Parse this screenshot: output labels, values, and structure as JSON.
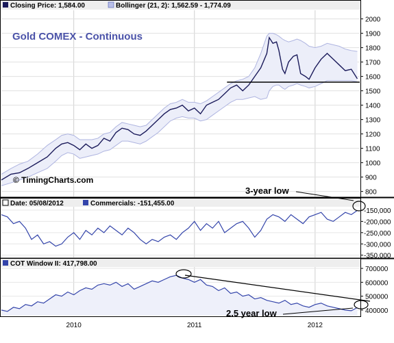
{
  "chart_data": [
    {
      "type": "line",
      "title": "Gold COMEX - Continuous",
      "legend": [
        {
          "label": "Closing Price: 1,584.00",
          "color": "#1a1a5a"
        },
        {
          "label": "Bollinger (21, 2): 1,562.59 - 1,774.09",
          "color": "#b9bfe8"
        }
      ],
      "watermark": "© TimingCharts.com",
      "x_labels": [
        "2010",
        "2011",
        "2012"
      ],
      "y_ticks": [
        800,
        900,
        1000,
        1100,
        1200,
        1300,
        1400,
        1500,
        1600,
        1700,
        1800,
        1900,
        2000
      ],
      "ylim": [
        765,
        2060
      ],
      "x": [
        2009.4,
        2009.48,
        2009.55,
        2009.62,
        2009.7,
        2009.78,
        2009.85,
        2009.9,
        2009.95,
        2010.0,
        2010.05,
        2010.1,
        2010.15,
        2010.2,
        2010.25,
        2010.3,
        2010.35,
        2010.4,
        2010.45,
        2010.5,
        2010.55,
        2010.6,
        2010.65,
        2010.7,
        2010.75,
        2010.8,
        2010.85,
        2010.9,
        2010.95,
        2011.0,
        2011.05,
        2011.1,
        2011.15,
        2011.2,
        2011.25,
        2011.3,
        2011.35,
        2011.4,
        2011.45,
        2011.5,
        2011.55,
        2011.6,
        2011.62,
        2011.65,
        2011.68,
        2011.7,
        2011.73,
        2011.75,
        2011.78,
        2011.82,
        2011.85,
        2011.88,
        2011.92,
        2011.95,
        2012.0,
        2012.05,
        2012.1,
        2012.15,
        2012.2,
        2012.25,
        2012.3,
        2012.35
      ],
      "close": [
        880,
        920,
        930,
        960,
        1000,
        1040,
        1100,
        1130,
        1140,
        1120,
        1090,
        1130,
        1100,
        1120,
        1170,
        1150,
        1210,
        1240,
        1230,
        1200,
        1190,
        1220,
        1260,
        1300,
        1340,
        1370,
        1380,
        1400,
        1360,
        1380,
        1340,
        1400,
        1420,
        1440,
        1480,
        1520,
        1540,
        1500,
        1540,
        1600,
        1660,
        1760,
        1870,
        1830,
        1840,
        1780,
        1650,
        1620,
        1700,
        1740,
        1750,
        1620,
        1600,
        1580,
        1660,
        1720,
        1760,
        1720,
        1680,
        1640,
        1650,
        1584
      ],
      "bb_upper": [
        920,
        960,
        990,
        1010,
        1060,
        1120,
        1160,
        1190,
        1200,
        1190,
        1160,
        1160,
        1160,
        1170,
        1200,
        1210,
        1250,
        1280,
        1270,
        1260,
        1250,
        1260,
        1300,
        1340,
        1380,
        1410,
        1420,
        1440,
        1420,
        1420,
        1410,
        1430,
        1460,
        1490,
        1520,
        1550,
        1570,
        1580,
        1600,
        1660,
        1760,
        1880,
        1900,
        1900,
        1890,
        1880,
        1860,
        1850,
        1840,
        1850,
        1860,
        1850,
        1830,
        1810,
        1800,
        1810,
        1830,
        1820,
        1810,
        1790,
        1780,
        1774
      ],
      "bb_lower": [
        840,
        860,
        880,
        900,
        930,
        960,
        1010,
        1050,
        1070,
        1060,
        1030,
        1040,
        1050,
        1060,
        1080,
        1090,
        1120,
        1150,
        1150,
        1140,
        1130,
        1150,
        1180,
        1210,
        1250,
        1290,
        1310,
        1320,
        1310,
        1310,
        1290,
        1300,
        1330,
        1360,
        1390,
        1420,
        1440,
        1440,
        1450,
        1460,
        1440,
        1450,
        1500,
        1530,
        1540,
        1540,
        1520,
        1510,
        1530,
        1540,
        1550,
        1540,
        1530,
        1520,
        1530,
        1550,
        1570,
        1570,
        1570,
        1570,
        1570,
        1562
      ],
      "reference_line": 1560
    },
    {
      "type": "line",
      "legend": [
        {
          "label": "Date: 05/08/2012"
        },
        {
          "label": "Commercials: -151,455.00",
          "color": "#3344aa"
        }
      ],
      "y_ticks": [
        -150000,
        -200000,
        -250000,
        -300000,
        -350000
      ],
      "y_tick_labels": [
        "-150,000",
        "-200,000",
        "-250,000",
        "-300,000",
        "-350,000"
      ],
      "ylim": [
        -360000,
        -135000
      ],
      "annotation": "3-year low",
      "x": [
        2009.4,
        2009.45,
        2009.5,
        2009.55,
        2009.6,
        2009.65,
        2009.7,
        2009.75,
        2009.8,
        2009.85,
        2009.9,
        2009.95,
        2010.0,
        2010.05,
        2010.1,
        2010.15,
        2010.2,
        2010.25,
        2010.3,
        2010.35,
        2010.4,
        2010.45,
        2010.5,
        2010.55,
        2010.6,
        2010.65,
        2010.7,
        2010.75,
        2010.8,
        2010.85,
        2010.9,
        2010.95,
        2011.0,
        2011.05,
        2011.1,
        2011.15,
        2011.2,
        2011.25,
        2011.3,
        2011.35,
        2011.4,
        2011.45,
        2011.5,
        2011.55,
        2011.6,
        2011.65,
        2011.7,
        2011.75,
        2011.8,
        2011.85,
        2011.9,
        2011.95,
        2012.0,
        2012.05,
        2012.1,
        2012.15,
        2012.2,
        2012.25,
        2012.3,
        2012.35
      ],
      "values": [
        -170000,
        -180000,
        -210000,
        -200000,
        -230000,
        -280000,
        -260000,
        -300000,
        -290000,
        -310000,
        -300000,
        -270000,
        -250000,
        -280000,
        -240000,
        -260000,
        -230000,
        -250000,
        -220000,
        -240000,
        -260000,
        -230000,
        -250000,
        -280000,
        -300000,
        -280000,
        -290000,
        -270000,
        -260000,
        -280000,
        -250000,
        -230000,
        -200000,
        -240000,
        -210000,
        -230000,
        -200000,
        -250000,
        -230000,
        -210000,
        -200000,
        -230000,
        -270000,
        -240000,
        -190000,
        -170000,
        -180000,
        -200000,
        -170000,
        -190000,
        -210000,
        -180000,
        -170000,
        -160000,
        -190000,
        -200000,
        -180000,
        -160000,
        -170000,
        -151455
      ]
    },
    {
      "type": "line",
      "legend": [
        {
          "label": "COT Window II: 417,798.00",
          "color": "#3344aa"
        }
      ],
      "y_ticks": [
        700000,
        600000,
        500000,
        400000
      ],
      "y_tick_labels": [
        "700000",
        "600000",
        "500000",
        "400000"
      ],
      "ylim": [
        360000,
        710000
      ],
      "annotation": "2.5 year low",
      "x": [
        2009.4,
        2009.45,
        2009.5,
        2009.55,
        2009.6,
        2009.65,
        2009.7,
        2009.75,
        2009.8,
        2009.85,
        2009.9,
        2009.95,
        2010.0,
        2010.05,
        2010.1,
        2010.15,
        2010.2,
        2010.25,
        2010.3,
        2010.35,
        2010.4,
        2010.45,
        2010.5,
        2010.55,
        2010.6,
        2010.65,
        2010.7,
        2010.75,
        2010.8,
        2010.85,
        2010.9,
        2010.95,
        2011.0,
        2011.05,
        2011.1,
        2011.15,
        2011.2,
        2011.25,
        2011.3,
        2011.35,
        2011.4,
        2011.45,
        2011.5,
        2011.55,
        2011.6,
        2011.65,
        2011.7,
        2011.75,
        2011.8,
        2011.85,
        2011.9,
        2011.95,
        2012.0,
        2012.05,
        2012.1,
        2012.15,
        2012.2,
        2012.25,
        2012.3,
        2012.35
      ],
      "values": [
        400000,
        390000,
        420000,
        410000,
        440000,
        430000,
        460000,
        450000,
        480000,
        510000,
        500000,
        530000,
        510000,
        540000,
        560000,
        550000,
        580000,
        590000,
        580000,
        600000,
        570000,
        590000,
        550000,
        570000,
        590000,
        610000,
        600000,
        620000,
        640000,
        650000,
        630000,
        620000,
        600000,
        620000,
        580000,
        570000,
        540000,
        560000,
        520000,
        530000,
        500000,
        510000,
        480000,
        490000,
        470000,
        460000,
        450000,
        470000,
        440000,
        450000,
        430000,
        420000,
        440000,
        450000,
        430000,
        420000,
        410000,
        400000,
        395000,
        417798
      ]
    }
  ]
}
